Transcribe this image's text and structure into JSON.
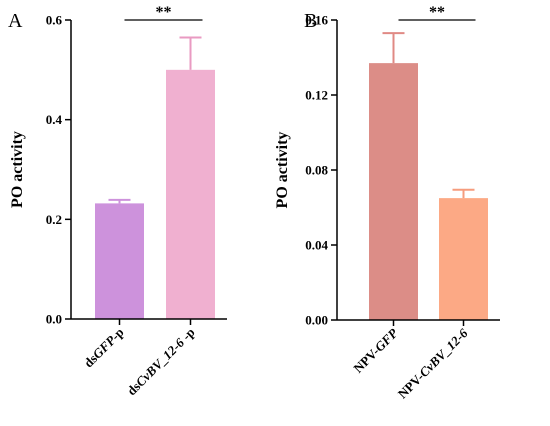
{
  "chart_data": [
    {
      "panel": "A",
      "type": "bar",
      "ylabel": "PO activity",
      "ylim": [
        0,
        0.6
      ],
      "yticks": [
        "0.0",
        "0.2",
        "0.4",
        "0.6"
      ],
      "categories": [
        {
          "parts": [
            {
              "text": "ds",
              "italic": false
            },
            {
              "text": "GFP",
              "italic": true
            },
            {
              "text": "-p",
              "italic": false
            }
          ]
        },
        {
          "parts": [
            {
              "text": "ds",
              "italic": false
            },
            {
              "text": "CvBV_12-6",
              "italic": true
            },
            {
              "text": " -p",
              "italic": false
            }
          ]
        }
      ],
      "values": [
        0.232,
        0.5
      ],
      "errors": [
        0.007,
        0.065
      ],
      "colors": [
        "#cd92dc",
        "#f0b0d0"
      ],
      "error_colors": [
        "#cd92dc",
        "#e99ac2"
      ],
      "significance": "**"
    },
    {
      "panel": "B",
      "type": "bar",
      "ylabel": "PO activity",
      "ylim": [
        0,
        0.16
      ],
      "yticks": [
        "0.00",
        "0.04",
        "0.08",
        "0.12",
        "0.16"
      ],
      "categories": [
        {
          "parts": [
            {
              "text": "NPV-",
              "italic": false
            },
            {
              "text": "GFP",
              "italic": true
            }
          ]
        },
        {
          "parts": [
            {
              "text": "NPV-",
              "italic": false
            },
            {
              "text": "CvBV_12-6",
              "italic": true
            }
          ]
        }
      ],
      "values": [
        0.137,
        0.065
      ],
      "errors": [
        0.016,
        0.0045
      ],
      "colors": [
        "#dc8d87",
        "#fca985"
      ],
      "error_colors": [
        "#e08a84",
        "#f69c7d"
      ],
      "significance": "**"
    }
  ]
}
